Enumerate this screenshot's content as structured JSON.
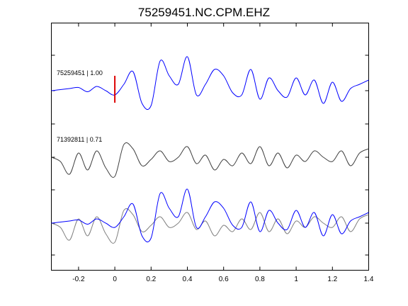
{
  "chart_data": {
    "type": "line",
    "title": "75259451.NC.CPM.EHZ",
    "xlabel": "",
    "ylabel": "",
    "xlim": [
      -0.35,
      1.4
    ],
    "x_ticks": [
      "-0.2",
      "0",
      "0.2",
      "0.4",
      "0.6",
      "0.8",
      "1",
      "1.2",
      "1.4"
    ],
    "x_tick_values": [
      -0.2,
      0,
      0.2,
      0.4,
      0.6,
      0.8,
      1.0,
      1.2,
      1.4
    ],
    "grid": false,
    "pick_time": 0.0,
    "colors": {
      "template": "#0000ff",
      "match": "#404040",
      "overlay_match": "#808080",
      "pick": "#dd0000",
      "axes": "#000000"
    },
    "series": [
      {
        "label": "75259451 | 1.00",
        "role": "template",
        "x": [
          -0.35,
          -0.3,
          -0.25,
          -0.2,
          -0.15,
          -0.1,
          -0.05,
          0.0,
          0.05,
          0.1,
          0.15,
          0.2,
          0.25,
          0.3,
          0.35,
          0.4,
          0.45,
          0.5,
          0.55,
          0.6,
          0.65,
          0.7,
          0.75,
          0.8,
          0.85,
          0.9,
          0.95,
          1.0,
          1.05,
          1.1,
          1.15,
          1.2,
          1.25,
          1.3,
          1.35,
          1.4
        ],
        "values": [
          0.0,
          0.05,
          0.1,
          0.15,
          -0.05,
          0.2,
          0.0,
          -0.2,
          0.3,
          0.9,
          -0.6,
          -0.7,
          1.4,
          0.7,
          0.3,
          1.6,
          -0.2,
          0.3,
          1.0,
          0.7,
          -0.1,
          -0.2,
          1.0,
          -0.4,
          0.6,
          0.0,
          -0.3,
          0.6,
          -0.2,
          0.5,
          -0.6,
          0.4,
          -0.5,
          0.1,
          0.3,
          0.5
        ]
      },
      {
        "label": "71392811 | 0.71",
        "role": "match",
        "x": [
          -0.35,
          -0.3,
          -0.25,
          -0.2,
          -0.15,
          -0.1,
          -0.05,
          0.0,
          0.05,
          0.1,
          0.15,
          0.2,
          0.25,
          0.3,
          0.35,
          0.4,
          0.45,
          0.5,
          0.55,
          0.6,
          0.65,
          0.7,
          0.75,
          0.8,
          0.85,
          0.9,
          0.95,
          1.0,
          1.05,
          1.1,
          1.15,
          1.2,
          1.25,
          1.3,
          1.35,
          1.4
        ],
        "values": [
          0.0,
          -0.2,
          -0.8,
          0.2,
          -0.6,
          0.3,
          -0.5,
          -0.9,
          0.6,
          0.4,
          -0.4,
          -0.1,
          0.3,
          -0.2,
          0.0,
          0.5,
          -0.3,
          0.1,
          -0.6,
          -0.1,
          -0.4,
          0.2,
          -0.3,
          0.5,
          -0.4,
          0.2,
          -0.5,
          0.1,
          -0.2,
          0.3,
          0.0,
          -0.2,
          0.3,
          -0.4,
          0.2,
          0.4
        ]
      }
    ]
  }
}
